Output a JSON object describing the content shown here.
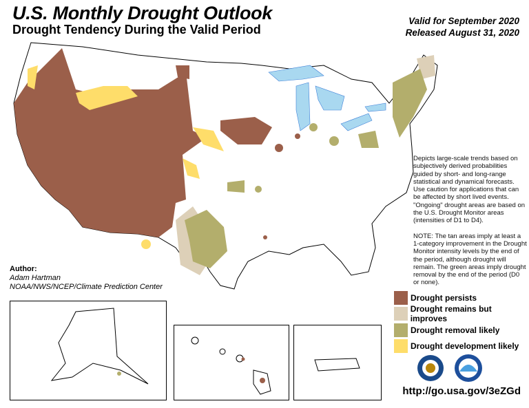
{
  "header": {
    "title": "U.S. Monthly Drought Outlook",
    "subtitle": "Drought Tendency During the Valid Period",
    "valid": "Valid for September 2020",
    "released": "Released August 31, 2020"
  },
  "author": {
    "label": "Author:",
    "name": "Adam Hartman",
    "org": "NOAA/NWS/NCEP/Climate Prediction Center"
  },
  "description": {
    "p1": "Depicts large-scale trends based on subjectively derived probabilities guided by short- and long-range statistical and dynamical forecasts. Use caution for applications that can be affected by short lived events. \"Ongoing\" drought areas are based on the U.S. Drought Monitor areas (intensities of D1 to D4).",
    "p2": "NOTE: The tan areas imply at least a 1-category improvement in the Drought Monitor intensity levels by the end of the period, although drought will remain. The green areas imply drought removal by the end of the period (D0 or none)."
  },
  "legend": [
    {
      "label": "Drought persists",
      "color": "#9b5f4a"
    },
    {
      "label": "Drought remains but improves",
      "color": "#ddd0b8"
    },
    {
      "label": "Drought removal likely",
      "color": "#b3ae6c"
    },
    {
      "label": "Drought development likely",
      "color": "#fedd6a"
    }
  ],
  "url": "http://go.usa.gov/3eZGd",
  "colors": {
    "water": "#a9d8f0",
    "rivers": "#3d7fd8"
  }
}
